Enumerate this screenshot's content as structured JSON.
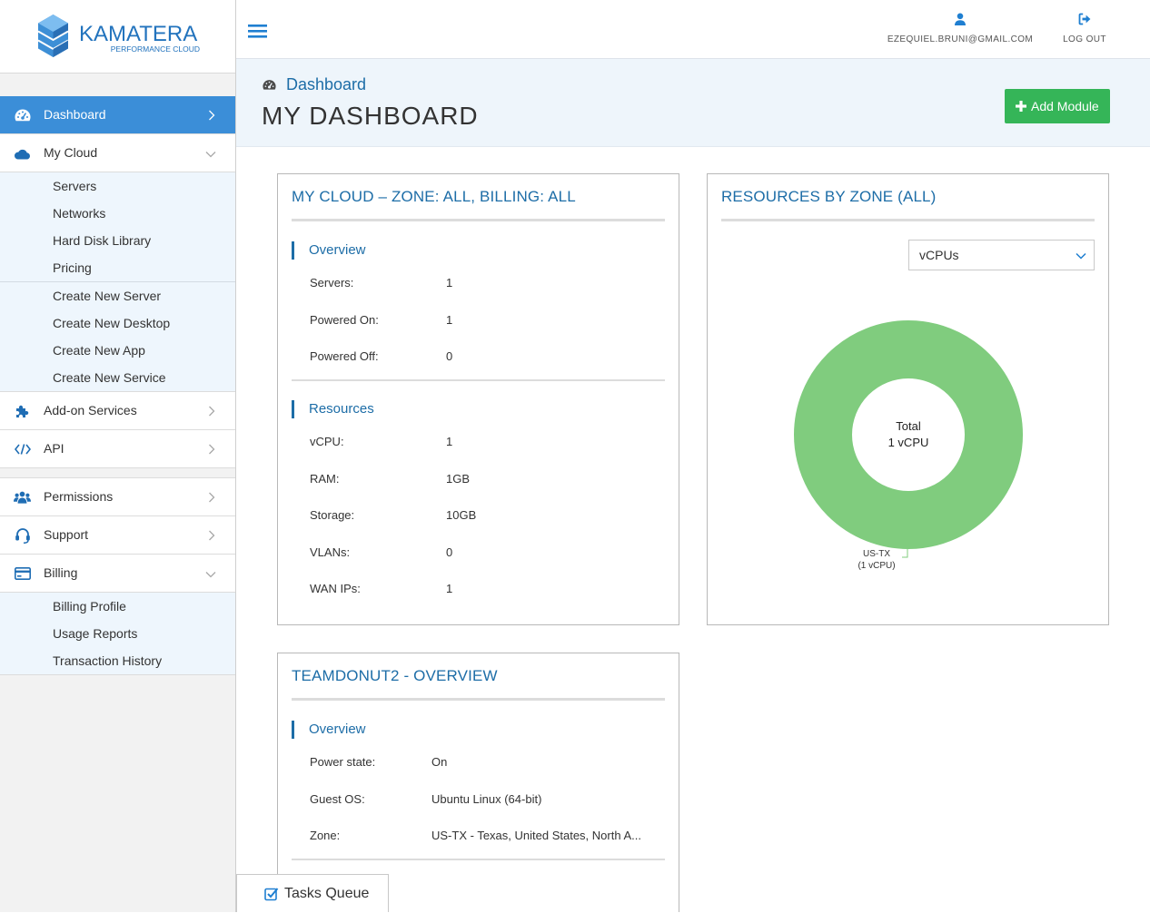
{
  "logo": {
    "name": "KAMATERA",
    "tagline": "PERFORMANCE CLOUD"
  },
  "header": {
    "email": "EZEQUIEL.BRUNI@GMAIL.COM",
    "logout": "LOG OUT",
    "menu_icon": "hamburger-icon",
    "user_icon": "user-icon",
    "logout_icon": "sign-out-icon"
  },
  "sidebar": {
    "dashboard": {
      "label": "Dashboard",
      "icon": "dashboard-icon"
    },
    "my_cloud": {
      "label": "My Cloud",
      "icon": "cloud-icon",
      "links": [
        "Servers",
        "Networks",
        "Hard Disk Library",
        "Pricing"
      ],
      "create_links": [
        "Create New Server",
        "Create New Desktop",
        "Create New App",
        "Create New Service"
      ]
    },
    "addon_services": {
      "label": "Add-on Services",
      "icon": "puzzle-icon"
    },
    "api": {
      "label": "API",
      "icon": "code-icon"
    },
    "permissions": {
      "label": "Permissions",
      "icon": "users-icon"
    },
    "support": {
      "label": "Support",
      "icon": "headset-icon"
    },
    "billing": {
      "label": "Billing",
      "icon": "credit-card-icon",
      "links": [
        "Billing Profile",
        "Usage Reports",
        "Transaction History"
      ]
    }
  },
  "page_header": {
    "breadcrumb": "Dashboard",
    "title": "MY DASHBOARD",
    "add_module_label": "Add Module"
  },
  "cloud_card": {
    "title": "MY CLOUD – ZONE: ALL, BILLING: ALL",
    "overview": {
      "heading": "Overview",
      "rows": [
        {
          "label": "Servers:",
          "value": "1"
        },
        {
          "label": "Powered On:",
          "value": "1"
        },
        {
          "label": "Powered Off:",
          "value": "0"
        }
      ]
    },
    "resources": {
      "heading": "Resources",
      "rows": [
        {
          "label": "vCPU:",
          "value": "1"
        },
        {
          "label": "RAM:",
          "value": "1GB"
        },
        {
          "label": "Storage:",
          "value": "10GB"
        },
        {
          "label": "VLANs:",
          "value": "0"
        },
        {
          "label": "WAN IPs:",
          "value": "1"
        }
      ]
    }
  },
  "zone_card": {
    "title": "RESOURCES BY ZONE (ALL)",
    "select_value": "vCPUs",
    "center_line1": "Total",
    "center_line2": "1 vCPU",
    "slices": [
      {
        "label": "US-TX",
        "value": 1,
        "value_label": "(1 vCPU)",
        "color": "#80cc7e"
      }
    ]
  },
  "server_card": {
    "title": "TEAMDONUT2 - OVERVIEW",
    "overview": {
      "heading": "Overview",
      "rows": [
        {
          "label": "Power state:",
          "value": "On"
        },
        {
          "label": "Guest OS:",
          "value": "Ubuntu Linux (64-bit)"
        },
        {
          "label": "Zone:",
          "value": "US-TX - Texas, United States, North A..."
        }
      ]
    }
  },
  "tasks_queue": {
    "label": "Tasks Queue",
    "icon": "check-square-icon"
  },
  "colors": {
    "accent": "#3b8ed8",
    "title_blue": "#1d6da7",
    "add_button": "#35b558",
    "donut": "#80cc7e"
  }
}
